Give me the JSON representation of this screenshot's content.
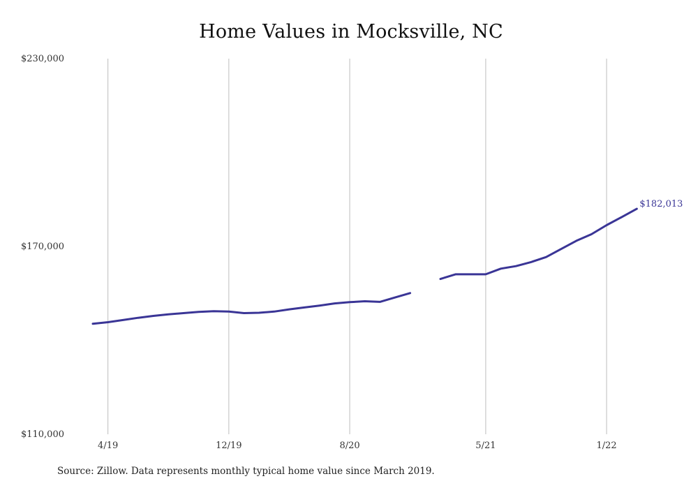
{
  "chart_data": {
    "type": "line",
    "title": "Home Values in Mocksville, NC",
    "xlabel": "",
    "ylabel": "",
    "ylim": [
      110000,
      230000
    ],
    "yticks": [
      {
        "value": 110000,
        "label": "$110,000"
      },
      {
        "value": 170000,
        "label": "$170,000"
      },
      {
        "value": 230000,
        "label": "$230,000"
      }
    ],
    "xticks": [
      {
        "date": "2019-04",
        "label": "4/19"
      },
      {
        "date": "2019-12",
        "label": "12/19"
      },
      {
        "date": "2020-08",
        "label": "8/20"
      },
      {
        "date": "2021-05",
        "label": "5/21"
      },
      {
        "date": "2022-01",
        "label": "1/22"
      }
    ],
    "grid": {
      "vertical": true,
      "horizontal": false
    },
    "series": [
      {
        "color": "#3a3596",
        "points": [
          {
            "date": "2019-03",
            "value": 145300
          },
          {
            "date": "2019-04",
            "value": 145800
          },
          {
            "date": "2019-05",
            "value": 146500
          },
          {
            "date": "2019-06",
            "value": 147200
          },
          {
            "date": "2019-07",
            "value": 147800
          },
          {
            "date": "2019-08",
            "value": 148300
          },
          {
            "date": "2019-09",
            "value": 148700
          },
          {
            "date": "2019-10",
            "value": 149100
          },
          {
            "date": "2019-11",
            "value": 149300
          },
          {
            "date": "2019-12",
            "value": 149200
          },
          {
            "date": "2020-01",
            "value": 148700
          },
          {
            "date": "2020-02",
            "value": 148800
          },
          {
            "date": "2020-03",
            "value": 149200
          },
          {
            "date": "2020-04",
            "value": 149900
          },
          {
            "date": "2020-05",
            "value": 150500
          },
          {
            "date": "2020-06",
            "value": 151100
          },
          {
            "date": "2020-07",
            "value": 151800
          },
          {
            "date": "2020-08",
            "value": 152200
          },
          {
            "date": "2020-09",
            "value": 152500
          },
          {
            "date": "2020-10",
            "value": 152300
          },
          {
            "date": "2020-11",
            "value": 153700
          },
          {
            "date": "2020-12",
            "value": 155100
          },
          {
            "date": "2021-01",
            "value": null
          },
          {
            "date": "2021-02",
            "value": 159600
          },
          {
            "date": "2021-03",
            "value": 161100
          },
          {
            "date": "2021-04",
            "value": 161100
          },
          {
            "date": "2021-05",
            "value": 161100
          },
          {
            "date": "2021-06",
            "value": 162900
          },
          {
            "date": "2021-07",
            "value": 163700
          },
          {
            "date": "2021-08",
            "value": 165000
          },
          {
            "date": "2021-09",
            "value": 166600
          },
          {
            "date": "2021-10",
            "value": 169200
          },
          {
            "date": "2021-11",
            "value": 171800
          },
          {
            "date": "2021-12",
            "value": 173900
          },
          {
            "date": "2022-01",
            "value": 176800
          },
          {
            "date": "2022-02",
            "value": 179400
          },
          {
            "date": "2022-03",
            "value": 182013
          }
        ]
      }
    ],
    "annotations": [
      {
        "date": "2022-03",
        "value": 182013,
        "label": "$182,013"
      }
    ]
  },
  "source_note": "Source: Zillow. Data represents monthly typical home value since March 2019."
}
